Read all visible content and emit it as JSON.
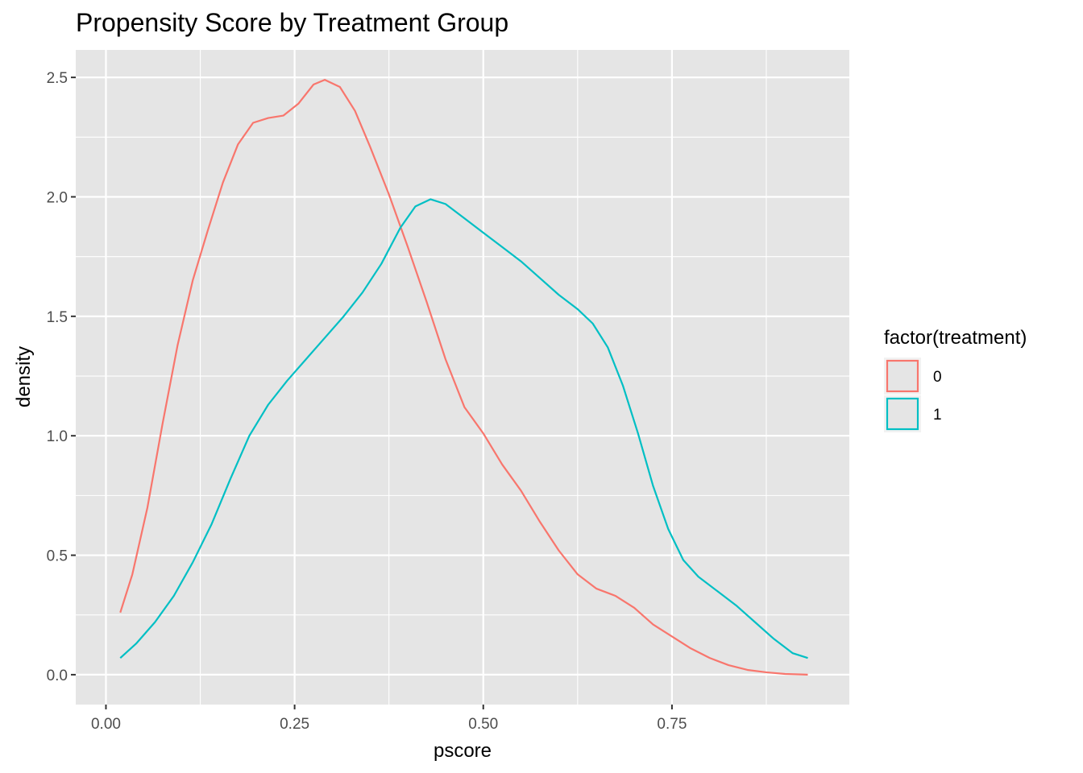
{
  "chart_data": {
    "type": "line",
    "subtype": "density",
    "title": "Propensity Score by Treatment Group",
    "xlabel": "pscore",
    "ylabel": "density",
    "xlim": [
      -0.04,
      0.985
    ],
    "ylim": [
      -0.125,
      2.615
    ],
    "x_ticks": [
      0.0,
      0.25,
      0.5,
      0.75
    ],
    "x_tick_labels": [
      "0.00",
      "0.25",
      "0.50",
      "0.75"
    ],
    "y_ticks": [
      0.0,
      0.5,
      1.0,
      1.5,
      2.0,
      2.5
    ],
    "y_tick_labels": [
      "0.0",
      "0.5",
      "1.0",
      "1.5",
      "2.0",
      "2.5"
    ],
    "grid": true,
    "panel_background": "#e5e5e5",
    "legend": {
      "title": "factor(treatment)",
      "placement": "right"
    },
    "series": [
      {
        "name": "0",
        "color": "#F8766D",
        "points": [
          [
            0.019,
            0.26
          ],
          [
            0.035,
            0.42
          ],
          [
            0.055,
            0.7
          ],
          [
            0.075,
            1.05
          ],
          [
            0.095,
            1.38
          ],
          [
            0.115,
            1.65
          ],
          [
            0.135,
            1.86
          ],
          [
            0.155,
            2.06
          ],
          [
            0.175,
            2.22
          ],
          [
            0.195,
            2.31
          ],
          [
            0.215,
            2.33
          ],
          [
            0.235,
            2.34
          ],
          [
            0.255,
            2.39
          ],
          [
            0.275,
            2.47
          ],
          [
            0.29,
            2.49
          ],
          [
            0.31,
            2.46
          ],
          [
            0.33,
            2.36
          ],
          [
            0.35,
            2.21
          ],
          [
            0.375,
            2.01
          ],
          [
            0.4,
            1.79
          ],
          [
            0.425,
            1.56
          ],
          [
            0.45,
            1.32
          ],
          [
            0.475,
            1.12
          ],
          [
            0.5,
            1.01
          ],
          [
            0.525,
            0.88
          ],
          [
            0.55,
            0.77
          ],
          [
            0.575,
            0.64
          ],
          [
            0.6,
            0.52
          ],
          [
            0.625,
            0.42
          ],
          [
            0.65,
            0.36
          ],
          [
            0.675,
            0.33
          ],
          [
            0.7,
            0.28
          ],
          [
            0.725,
            0.21
          ],
          [
            0.75,
            0.16
          ],
          [
            0.775,
            0.11
          ],
          [
            0.8,
            0.07
          ],
          [
            0.825,
            0.04
          ],
          [
            0.85,
            0.02
          ],
          [
            0.875,
            0.01
          ],
          [
            0.9,
            0.003
          ],
          [
            0.93,
            0.0
          ]
        ]
      },
      {
        "name": "1",
        "color": "#00BFC4",
        "points": [
          [
            0.019,
            0.07
          ],
          [
            0.04,
            0.13
          ],
          [
            0.065,
            0.22
          ],
          [
            0.09,
            0.33
          ],
          [
            0.115,
            0.47
          ],
          [
            0.14,
            0.63
          ],
          [
            0.165,
            0.82
          ],
          [
            0.19,
            1.0
          ],
          [
            0.215,
            1.13
          ],
          [
            0.24,
            1.23
          ],
          [
            0.265,
            1.32
          ],
          [
            0.29,
            1.41
          ],
          [
            0.315,
            1.5
          ],
          [
            0.34,
            1.6
          ],
          [
            0.365,
            1.72
          ],
          [
            0.39,
            1.87
          ],
          [
            0.41,
            1.96
          ],
          [
            0.43,
            1.99
          ],
          [
            0.45,
            1.97
          ],
          [
            0.475,
            1.91
          ],
          [
            0.5,
            1.85
          ],
          [
            0.525,
            1.79
          ],
          [
            0.55,
            1.73
          ],
          [
            0.575,
            1.66
          ],
          [
            0.6,
            1.59
          ],
          [
            0.625,
            1.53
          ],
          [
            0.645,
            1.47
          ],
          [
            0.665,
            1.37
          ],
          [
            0.685,
            1.21
          ],
          [
            0.705,
            1.01
          ],
          [
            0.725,
            0.79
          ],
          [
            0.745,
            0.61
          ],
          [
            0.765,
            0.48
          ],
          [
            0.785,
            0.41
          ],
          [
            0.81,
            0.35
          ],
          [
            0.835,
            0.29
          ],
          [
            0.86,
            0.22
          ],
          [
            0.885,
            0.15
          ],
          [
            0.91,
            0.09
          ],
          [
            0.93,
            0.07
          ]
        ]
      }
    ]
  }
}
